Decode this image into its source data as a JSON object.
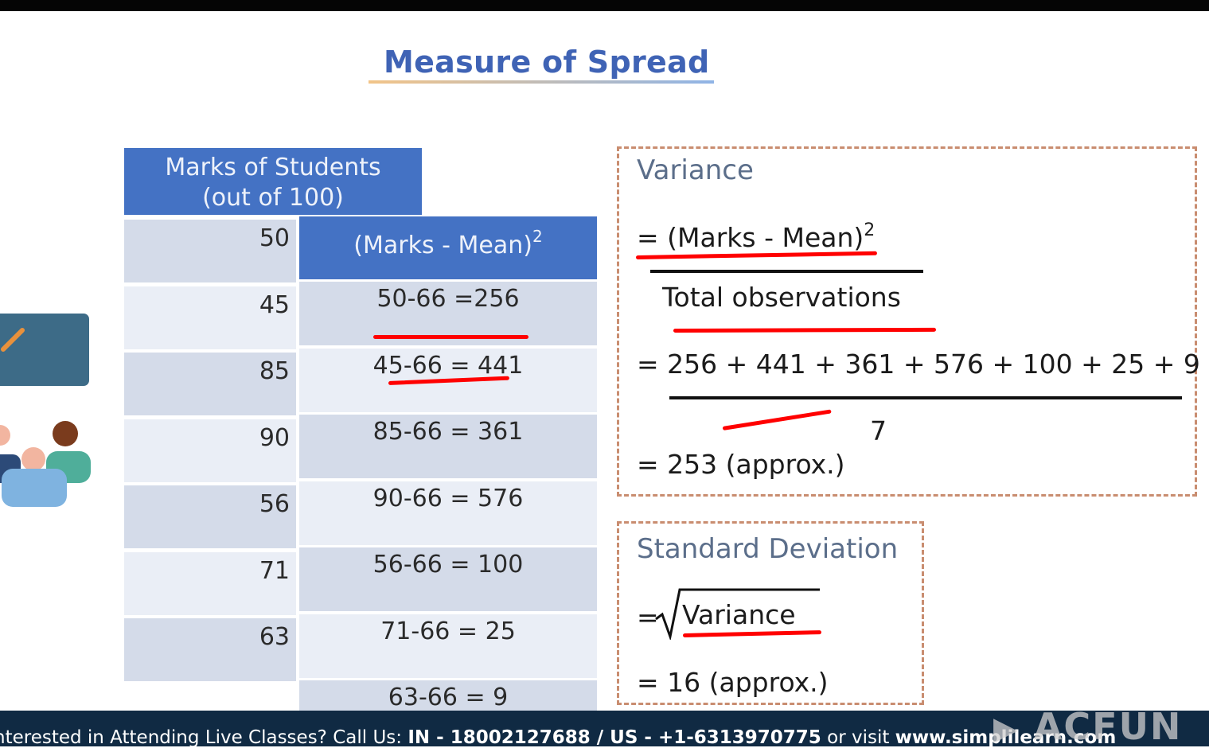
{
  "title": "Measure of Spread",
  "table": {
    "marks_header": [
      "Marks of Students",
      "(out of 100)"
    ],
    "diff_header": "(Marks - Mean)",
    "diff_header_exp": "2",
    "marks": [
      "50",
      "45",
      "85",
      "90",
      "56",
      "71",
      "63"
    ],
    "diffs": [
      "50-66 =256",
      "45-66 = 441",
      "85-66 = 361",
      "90-66 = 576",
      "56-66 = 100",
      "71-66 = 25",
      "63-66 = 9"
    ]
  },
  "variance": {
    "label": "Variance",
    "numerator": "= (Marks - Mean)",
    "numerator_exp": "2",
    "denominator": "Total observations",
    "sum": "= 256 + 441 + 361 + 576 + 100 + 25 + 9",
    "divisor": "7",
    "result": "=  253 (approx.)"
  },
  "std_dev": {
    "label": "Standard Deviation",
    "eq": "=",
    "radicand": "Variance",
    "result": "= 16 (approx.)"
  },
  "footer": {
    "text": "nterested in Attending Live Classes? Call Us: ",
    "phones": "IN - 18002127688 / US - +1-6313970775",
    "or_visit": " or visit ",
    "site": "www.simplilearn.com"
  },
  "watermark": "ACFUN",
  "colors": {
    "accent": "#4472c4",
    "title": "#3f63b5",
    "row_dark": "#d4dbe9",
    "row_light": "#eaeef6",
    "annotation": "#ff0000",
    "footer_bg": "#102a43"
  }
}
